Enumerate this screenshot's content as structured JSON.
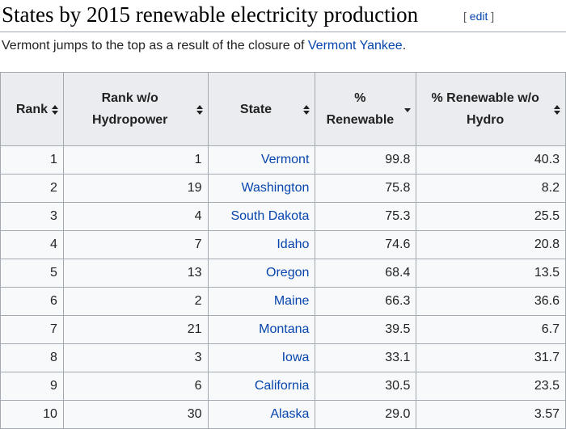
{
  "section": {
    "title": "States by 2015 renewable electricity production",
    "edit_open": "[ ",
    "edit_label": "edit",
    "edit_close": " ]"
  },
  "intro": {
    "text_before": "Vermont jumps to the top as a result of the closure of ",
    "link": "Vermont Yankee",
    "text_after": "."
  },
  "table": {
    "columns": [
      {
        "label": "Rank",
        "sort": "both"
      },
      {
        "label_1": "Rank w/o",
        "label_2": "Hydropower",
        "sort": "both"
      },
      {
        "label": "State",
        "sort": "both"
      },
      {
        "label_1": "%",
        "label_2": "Renewable",
        "sort": "descending"
      },
      {
        "label_1": "% Renewable w/o",
        "label_2": "Hydro",
        "sort": "both"
      }
    ],
    "rows": [
      {
        "rank": "1",
        "rank_wo_hydro": "1",
        "state": "Vermont",
        "pct_renewable": "99.8",
        "pct_renewable_wo_hydro": "40.3"
      },
      {
        "rank": "2",
        "rank_wo_hydro": "19",
        "state": "Washington",
        "pct_renewable": "75.8",
        "pct_renewable_wo_hydro": "8.2"
      },
      {
        "rank": "3",
        "rank_wo_hydro": "4",
        "state": "South Dakota",
        "pct_renewable": "75.3",
        "pct_renewable_wo_hydro": "25.5"
      },
      {
        "rank": "4",
        "rank_wo_hydro": "7",
        "state": "Idaho",
        "pct_renewable": "74.6",
        "pct_renewable_wo_hydro": "20.8"
      },
      {
        "rank": "5",
        "rank_wo_hydro": "13",
        "state": "Oregon",
        "pct_renewable": "68.4",
        "pct_renewable_wo_hydro": "13.5"
      },
      {
        "rank": "6",
        "rank_wo_hydro": "2",
        "state": "Maine",
        "pct_renewable": "66.3",
        "pct_renewable_wo_hydro": "36.6"
      },
      {
        "rank": "7",
        "rank_wo_hydro": "21",
        "state": "Montana",
        "pct_renewable": "39.5",
        "pct_renewable_wo_hydro": "6.7"
      },
      {
        "rank": "8",
        "rank_wo_hydro": "3",
        "state": "Iowa",
        "pct_renewable": "33.1",
        "pct_renewable_wo_hydro": "31.7"
      },
      {
        "rank": "9",
        "rank_wo_hydro": "6",
        "state": "California",
        "pct_renewable": "30.5",
        "pct_renewable_wo_hydro": "23.5"
      },
      {
        "rank": "10",
        "rank_wo_hydro": "30",
        "state": "Alaska",
        "pct_renewable": "29.0",
        "pct_renewable_wo_hydro": "3.57"
      }
    ]
  }
}
